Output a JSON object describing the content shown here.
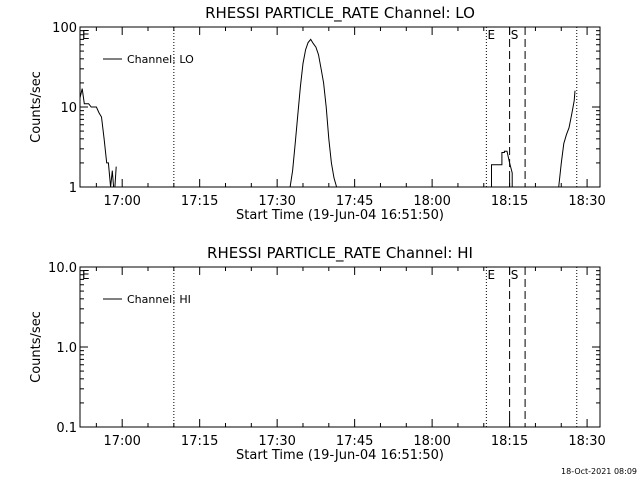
{
  "footer": {
    "timestamp": "18-Oct-2021 08:09"
  },
  "chart_data": [
    {
      "type": "line",
      "title": "RHESSI PARTICLE_RATE Channel: LO",
      "xlabel": "Start Time (19-Jun-04 16:51:50)",
      "ylabel": "Counts/sec",
      "yscale": "log",
      "ylim": [
        1,
        100
      ],
      "xlim": [
        "16:51:50",
        "18:32:30"
      ],
      "xticks": [
        "17:00",
        "17:15",
        "17:30",
        "17:45",
        "18:00",
        "18:15",
        "18:30"
      ],
      "yticks": [
        "1",
        "10",
        "100"
      ],
      "legend": {
        "entries": [
          "Channel: LO"
        ],
        "position": "top-left"
      },
      "vertical_markers": [
        {
          "time": "17:10:00",
          "style": "dotted",
          "label": ""
        },
        {
          "time": "18:10:30",
          "style": "dotted",
          "label": "E"
        },
        {
          "time": "18:15:00",
          "style": "dashed",
          "label": "S"
        },
        {
          "time": "18:18:00",
          "style": "dashed",
          "label": ""
        },
        {
          "time": "18:28:00",
          "style": "dotted",
          "label": ""
        }
      ],
      "corner_label": "E",
      "series": [
        {
          "name": "Channel: LO",
          "segments": [
            {
              "x": [
                "16:51:50",
                "16:52:15",
                "16:52:40",
                "16:53:00",
                "16:53:30",
                "16:54:00",
                "16:55:00",
                "16:55:30",
                "16:56:00",
                "16:56:30",
                "16:57:00",
                "16:57:20",
                "16:57:45",
                "16:58:05",
                "16:58:20",
                "16:58:35",
                "16:58:50"
              ],
              "y": [
                13,
                17,
                11,
                11,
                11,
                10,
                10,
                8.5,
                7.5,
                4,
                2,
                2,
                1,
                1.6,
                1.0,
                1.0,
                1.8
              ]
            },
            {
              "x": [
                "17:32:30",
                "17:33:00",
                "17:33:30",
                "17:34:00",
                "17:34:30",
                "17:35:00",
                "17:35:30",
                "17:36:00",
                "17:36:30",
                "17:37:00",
                "17:37:30",
                "17:38:00",
                "17:38:30",
                "17:39:00",
                "17:39:30",
                "17:40:00",
                "17:40:30",
                "17:41:00",
                "17:41:30"
              ],
              "y": [
                1.0,
                1.6,
                3.5,
                8,
                18,
                35,
                52,
                64,
                70,
                62,
                56,
                45,
                30,
                20,
                10,
                4,
                2,
                1.3,
                1.0
              ]
            },
            {
              "x": [
                "18:11:30",
                "18:11:30",
                "18:12:30",
                "18:13:30",
                "18:13:30",
                "18:14:00",
                "18:14:00",
                "18:14:30",
                "18:15:00",
                "18:15:30",
                "18:15:30"
              ],
              "y": [
                1.0,
                1.9,
                1.9,
                1.9,
                2.7,
                2.7,
                2.8,
                2.8,
                2.0,
                1.5,
                1.0
              ]
            },
            {
              "x": [
                "18:24:30",
                "18:25:00",
                "18:25:30",
                "18:26:00",
                "18:26:30",
                "18:27:00",
                "18:27:30",
                "18:27:40"
              ],
              "y": [
                1.0,
                2.0,
                3.5,
                4.5,
                5.5,
                8,
                12,
                16
              ]
            }
          ]
        }
      ]
    },
    {
      "type": "line",
      "title": "RHESSI PARTICLE_RATE Channel: HI",
      "xlabel": "Start Time (19-Jun-04 16:51:50)",
      "ylabel": "Counts/sec",
      "yscale": "log",
      "ylim": [
        0.1,
        10
      ],
      "xlim": [
        "16:51:50",
        "18:32:30"
      ],
      "xticks": [
        "17:00",
        "17:15",
        "17:30",
        "17:45",
        "18:00",
        "18:15",
        "18:30"
      ],
      "yticks": [
        "0.1",
        "1.0",
        "10.0"
      ],
      "legend": {
        "entries": [
          "Channel: HI"
        ],
        "position": "top-left"
      },
      "vertical_markers": [
        {
          "time": "17:10:00",
          "style": "dotted",
          "label": ""
        },
        {
          "time": "18:10:30",
          "style": "dotted",
          "label": "E"
        },
        {
          "time": "18:15:00",
          "style": "dashed",
          "label": "S"
        },
        {
          "time": "18:18:00",
          "style": "dashed",
          "label": ""
        },
        {
          "time": "18:28:00",
          "style": "dotted",
          "label": ""
        }
      ],
      "corner_label": "E",
      "series": [
        {
          "name": "Channel: HI",
          "segments": []
        }
      ]
    }
  ]
}
